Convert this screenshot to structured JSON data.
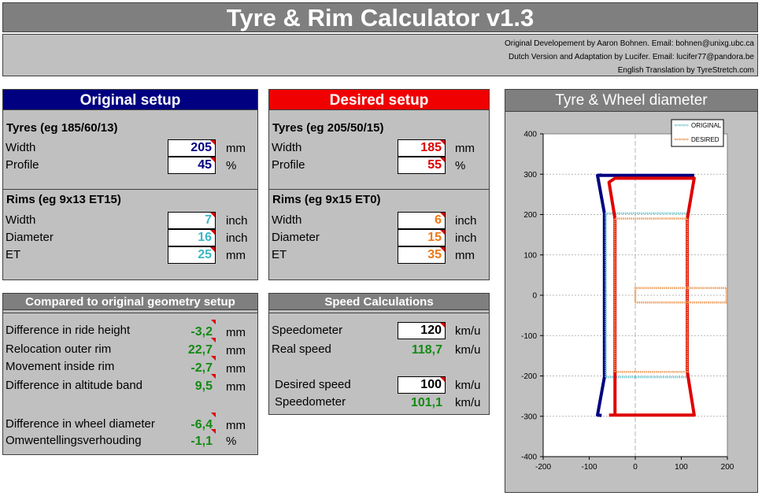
{
  "app": {
    "title": "Tyre & Rim Calculator v1.3",
    "credits": [
      "Original Developement by Aaron Bohnen. Email: bohnen@unixg.ubc.ca",
      "Dutch Version and Adaptation by Lucifer. Email: lucifer77@pandora.be",
      "English Translation by TyreStretch.com"
    ]
  },
  "original": {
    "heading": "Original setup",
    "tyres_heading": "Tyres (eg 185/60/13)",
    "tyre_width_label": "Width",
    "tyre_width": "205",
    "tyre_width_unit": "mm",
    "profile_label": "Profile",
    "profile": "45",
    "profile_unit": "%",
    "rims_heading": "Rims (eg 9x13 ET15)",
    "rim_width_label": "Width",
    "rim_width": "7",
    "rim_width_unit": "inch",
    "diameter_label": "Diameter",
    "diameter": "16",
    "diameter_unit": "inch",
    "et_label": "ET",
    "et": "25",
    "et_unit": "mm"
  },
  "desired": {
    "heading": "Desired setup",
    "tyres_heading": "Tyres (eg 205/50/15)",
    "tyre_width_label": "Width",
    "tyre_width": "185",
    "tyre_width_unit": "mm",
    "profile_label": "Profile",
    "profile": "55",
    "profile_unit": "%",
    "rims_heading": "Rims (eg 9x15 ET0)",
    "rim_width_label": "Width",
    "rim_width": "6",
    "rim_width_unit": "inch",
    "diameter_label": "Diameter",
    "diameter": "15",
    "diameter_unit": "inch",
    "et_label": "ET",
    "et": "35",
    "et_unit": "mm"
  },
  "comparison": {
    "heading": "Compared to original geometry setup",
    "rows": [
      {
        "label": "Difference in ride height",
        "value": "-3,2",
        "unit": "mm"
      },
      {
        "label": "Relocation outer rim",
        "value": "22,7",
        "unit": "mm"
      },
      {
        "label": "Movement inside rim",
        "value": "-2,7",
        "unit": "mm"
      },
      {
        "label": "Difference in altitude band",
        "value": "9,5",
        "unit": "mm"
      },
      {
        "label": "Difference in wheel diameter",
        "value": "-6,4",
        "unit": "mm"
      },
      {
        "label": "Omwentellingsverhouding",
        "value": "-1,1",
        "unit": "%"
      }
    ]
  },
  "speed": {
    "heading": "Speed Calculations",
    "speedometer_label": "Speedometer",
    "speedometer": "120",
    "speedometer_unit": "km/u",
    "real_speed_label": "Real speed",
    "real_speed": "118,7",
    "real_speed_unit": "km/u",
    "desired_speed_label": "Desired speed",
    "desired_speed": "100",
    "desired_speed_unit": "km/u",
    "speedometer2_label": "Speedometer",
    "speedometer2": "101,1",
    "speedometer2_unit": "km/u"
  },
  "diagram": {
    "heading": "Tyre & Wheel diameter",
    "legend_original": "ORIGINAL",
    "legend_desired": "DESIRED",
    "y_ticks": [
      "400",
      "300",
      "200",
      "100",
      "0",
      "-100",
      "-200",
      "-300",
      "-400"
    ],
    "x_ticks": [
      "-200",
      "-100",
      "0",
      "100",
      "200"
    ]
  },
  "chart_data": {
    "type": "line",
    "xlim": [
      -200,
      200
    ],
    "ylim": [
      -400,
      400
    ],
    "grid": true,
    "legend": "top-right",
    "series": [
      {
        "name": "ORIGINAL",
        "part": "tyre",
        "color": "#000080",
        "points": [
          [
            -73,
            -298
          ],
          [
            -82,
            -297
          ],
          [
            -67,
            -203
          ],
          [
            -67,
            203
          ],
          [
            -82,
            297
          ],
          [
            -73,
            298
          ]
        ]
      },
      {
        "name": "ORIGINAL",
        "part": "rim",
        "color": "#79cdd6",
        "points": [
          [
            -64,
            -203
          ],
          [
            -64,
            203
          ],
          [
            114,
            203
          ],
          [
            114,
            -203
          ],
          [
            -64,
            -203
          ]
        ]
      },
      {
        "name": "ORIGINAL",
        "part": "tyre-top",
        "color": "#000080",
        "points": [
          [
            -82,
            297
          ],
          [
            128,
            297
          ]
        ]
      },
      {
        "name": "DESIRED",
        "part": "tyre",
        "color": "#e00000",
        "points": [
          [
            -57,
            -297
          ],
          [
            -44,
            -297
          ],
          [
            -44,
            -190
          ],
          [
            -44,
            190
          ],
          [
            -57,
            280
          ],
          [
            -44,
            290
          ],
          [
            128,
            290
          ],
          [
            113,
            190
          ],
          [
            113,
            -190
          ],
          [
            128,
            -297
          ],
          [
            -57,
            -297
          ]
        ]
      },
      {
        "name": "DESIRED",
        "part": "rim",
        "color": "#ec9b5b",
        "points": [
          [
            -44,
            -190
          ],
          [
            -44,
            190
          ],
          [
            113,
            190
          ],
          [
            113,
            -190
          ],
          [
            -44,
            -190
          ]
        ]
      },
      {
        "name": "DESIRED",
        "part": "hub",
        "color": "#ec9b5b",
        "points": [
          [
            0,
            -18
          ],
          [
            0,
            18
          ],
          [
            198,
            18
          ],
          [
            198,
            -18
          ],
          [
            0,
            -18
          ]
        ]
      }
    ]
  }
}
